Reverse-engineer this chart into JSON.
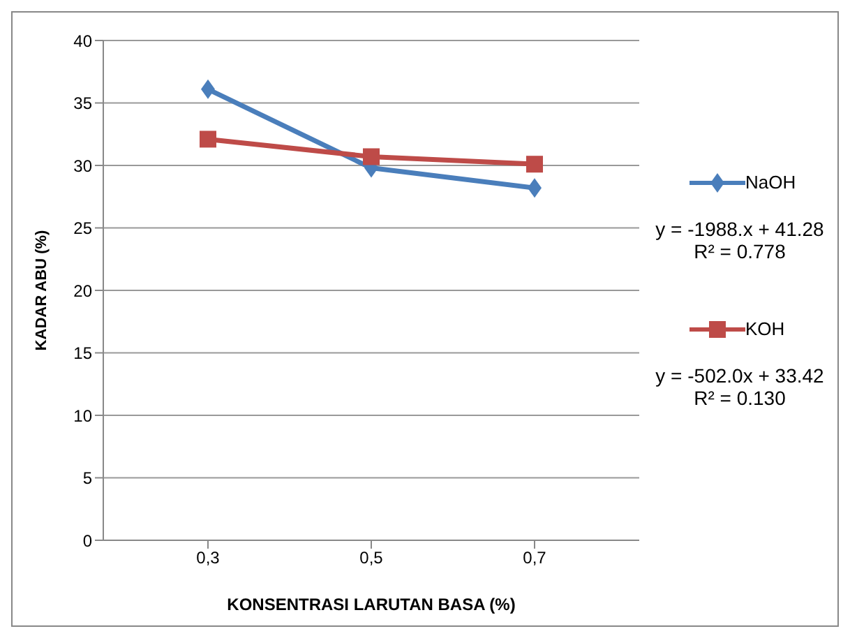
{
  "chart_data": {
    "type": "line",
    "xlabel": "KONSENTRASI LARUTAN BASA (%)",
    "ylabel": "KADAR ABU (%)",
    "categories": [
      "0,3",
      "0,5",
      "0,7"
    ],
    "series": [
      {
        "name": "NaOH",
        "color": "#4a7ebb",
        "values": [
          36.1,
          29.8,
          28.2
        ],
        "marker": "diamond"
      },
      {
        "name": "KOH",
        "color": "#be4b48",
        "values": [
          32.1,
          30.7,
          30.1
        ],
        "marker": "square"
      }
    ],
    "annotations": [
      "y = -1988.x + 41.28\nR² = 0.778",
      "y = -502.0x + 33.42\nR² = 0.130"
    ],
    "ylim": [
      0,
      40
    ],
    "yticks": [
      0,
      5,
      10,
      15,
      20,
      25,
      30,
      35,
      40
    ],
    "grid": "y",
    "legend": "right",
    "line_style": "solid"
  }
}
